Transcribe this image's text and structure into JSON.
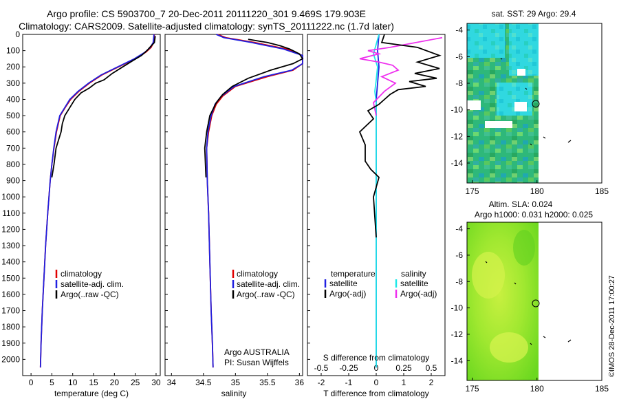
{
  "title": {
    "line1": "Argo profile: CS 5903700_7 20-Dec-2011 20111220_301 9.469S 179.903E",
    "line2": "Climatology: CARS2009. Satellite-adjusted climatology: synTS_20111222.nc (1.7d later)"
  },
  "colors": {
    "climatology": "#e00000",
    "satellite": "#2020e0",
    "argo": "#000000",
    "sat_salinity": "#20e8e8",
    "argo_salinity_diff": "#ee30ee"
  },
  "chart_data": [
    {
      "type": "line",
      "id": "temperature",
      "xlabel": "temperature (deg C)",
      "ylabel": "",
      "xlim": [
        -2,
        31
      ],
      "ylim": [
        2100,
        0
      ],
      "xticks": [
        0,
        5,
        10,
        15,
        20,
        25,
        30
      ],
      "yticks": [
        0,
        100,
        200,
        300,
        400,
        500,
        600,
        700,
        800,
        900,
        1000,
        1100,
        1200,
        1300,
        1400,
        1500,
        1600,
        1700,
        1800,
        1900,
        2000
      ],
      "legend": [
        "climatology",
        "satellite-adj. clim.",
        "Argo(..raw -QC)"
      ],
      "series": [
        {
          "name": "climatology",
          "color": "#e00000",
          "x": [
            29.6,
            29.4,
            28.8,
            27.5,
            25,
            21,
            17,
            14,
            11.5,
            9.5,
            8.2,
            7.0,
            6.1,
            5.5,
            5.0,
            4.6,
            4.0,
            3.5,
            3.1,
            2.7,
            2.4,
            2.25
          ],
          "y": [
            0,
            50,
            80,
            110,
            150,
            200,
            250,
            300,
            350,
            400,
            450,
            500,
            600,
            700,
            800,
            900,
            1100,
            1300,
            1500,
            1700,
            1900,
            2050
          ]
        },
        {
          "name": "satellite-adj. clim.",
          "color": "#2020e0",
          "x": [
            29.5,
            29.3,
            28.6,
            27.3,
            24.8,
            20.8,
            16.8,
            13.8,
            11.3,
            9.3,
            8.1,
            6.9,
            6.0,
            5.45,
            5.0,
            4.6,
            4.0,
            3.5,
            3.1,
            2.7,
            2.4,
            2.25
          ],
          "y": [
            0,
            50,
            80,
            110,
            150,
            200,
            250,
            300,
            350,
            400,
            450,
            500,
            600,
            700,
            800,
            900,
            1100,
            1300,
            1500,
            1700,
            1900,
            2050
          ]
        },
        {
          "name": "Argo(..raw -QC)",
          "color": "#000000",
          "x": [
            29.8,
            29.6,
            28.5,
            27.8,
            26.5,
            24.5,
            22.0,
            19.5,
            17.5,
            15.5,
            14.0,
            12.0,
            10.5,
            9.3,
            8.1,
            7.5,
            7.2,
            6.6,
            6.0,
            5.5,
            5.0
          ],
          "y": [
            10,
            50,
            80,
            100,
            130,
            160,
            200,
            240,
            280,
            300,
            330,
            360,
            400,
            450,
            500,
            550,
            600,
            650,
            700,
            800,
            880
          ]
        }
      ]
    },
    {
      "type": "line",
      "id": "salinity",
      "xlabel": "salinity",
      "ylabel": "",
      "xlim": [
        33.9,
        36.05
      ],
      "ylim": [
        2100,
        0
      ],
      "xticks": [
        34,
        34.5,
        35,
        35.5,
        36
      ],
      "legend": [
        "climatology",
        "satellite-adj. clim.",
        "Argo(..raw -QC)"
      ],
      "annotation": [
        "Argo AUSTRALIA",
        "PI: Susan Wijffels"
      ],
      "series": [
        {
          "name": "climatology",
          "color": "#e00000",
          "x": [
            34.72,
            34.85,
            35.3,
            35.8,
            36.05,
            36.05,
            35.9,
            35.5,
            35.0,
            34.8,
            34.7,
            34.63,
            34.58,
            34.55,
            34.56,
            34.58,
            34.6,
            34.62,
            34.64,
            34.65
          ],
          "y": [
            0,
            20,
            50,
            90,
            130,
            180,
            220,
            260,
            320,
            380,
            430,
            500,
            600,
            700,
            900,
            1100,
            1400,
            1700,
            1900,
            2050
          ]
        },
        {
          "name": "satellite-adj. clim.",
          "color": "#2020e0",
          "x": [
            34.7,
            34.82,
            35.25,
            35.75,
            36.05,
            36.05,
            35.88,
            35.45,
            34.98,
            34.78,
            34.68,
            34.62,
            34.57,
            34.55,
            34.56,
            34.58,
            34.6,
            34.62,
            34.64,
            34.65
          ],
          "y": [
            0,
            20,
            50,
            90,
            130,
            180,
            220,
            260,
            320,
            380,
            430,
            500,
            600,
            700,
            900,
            1100,
            1400,
            1700,
            1900,
            2050
          ]
        },
        {
          "name": "Argo(..raw -QC)",
          "color": "#000000",
          "x": [
            35.2,
            35.5,
            35.7,
            35.85,
            36.0,
            36.05,
            35.9,
            35.55,
            35.2,
            34.95,
            34.8,
            34.7,
            34.6,
            34.55,
            34.52,
            34.54
          ],
          "y": [
            30,
            50,
            70,
            90,
            120,
            150,
            180,
            220,
            270,
            320,
            370,
            420,
            500,
            600,
            700,
            880
          ]
        }
      ]
    },
    {
      "type": "line",
      "id": "difference",
      "xlabel": "T difference from climatology",
      "xlabel_top": "S difference from climatology",
      "xlim": [
        -2.5,
        2.5
      ],
      "ylim": [
        2100,
        0
      ],
      "xticks": [
        -2,
        -1,
        0,
        1,
        2
      ],
      "xticks_s": [
        -0.5,
        -0.25,
        0,
        0.25,
        0.5
      ],
      "xticks_s_labels": [
        "-0.5",
        "-0.25",
        "0",
        "0.25",
        "0.5"
      ],
      "legend_groups": [
        "temperature",
        "salinity"
      ],
      "legend": [
        "satellite",
        "Argo(-adj)",
        "satellite",
        "Argo(-adj)"
      ],
      "series": [
        {
          "name": "temperature satellite",
          "color": "#2020e0",
          "x": [
            0.1,
            0.05,
            0.1,
            0.05,
            0.0,
            0.0,
            0.0,
            0.0,
            0.0,
            0.0,
            0.0
          ],
          "y": [
            0,
            100,
            200,
            300,
            400,
            600,
            800,
            1000,
            1300,
            1700,
            2050
          ]
        },
        {
          "name": "salinity satellite",
          "color": "#20e8e8",
          "x": [
            0.1,
            0.0,
            -0.1,
            0.05,
            0.0,
            -0.05,
            0.0,
            0.0,
            0.0,
            0.0,
            0.0,
            0.0
          ],
          "y": [
            0,
            60,
            120,
            200,
            280,
            350,
            420,
            600,
            900,
            1300,
            1700,
            2050
          ]
        },
        {
          "name": "salinity Argo(-adj)",
          "color": "#ee30ee",
          "x": [
            2.4,
            0.5,
            -0.3,
            0.1,
            -0.6,
            0.1,
            0.6,
            0.8,
            0.2,
            0.7,
            0.3,
            -0.1,
            0.0
          ],
          "y": [
            20,
            80,
            100,
            120,
            150,
            170,
            190,
            220,
            260,
            300,
            350,
            420,
            500
          ]
        },
        {
          "name": "temperature Argo(-adj)",
          "color": "#000000",
          "x": [
            0.3,
            0.2,
            1.5,
            2.3,
            1.5,
            2.3,
            1.4,
            2.2,
            1.2,
            1.8,
            0.8,
            0.5,
            0.3,
            0.1,
            -0.3,
            -0.1,
            -0.6,
            -0.4,
            -0.4,
            -0.2,
            0.1,
            -0.1,
            0.0
          ],
          "y": [
            0,
            50,
            80,
            130,
            170,
            210,
            240,
            270,
            290,
            320,
            340,
            370,
            400,
            430,
            470,
            520,
            600,
            680,
            780,
            830,
            880,
            1000,
            1250
          ]
        }
      ]
    },
    {
      "type": "heatmap",
      "id": "sst_map",
      "title": "sat. SST: 29 Argo: 29.4",
      "xlim": [
        174.6,
        185
      ],
      "ylim": [
        -15.5,
        -3.5
      ],
      "xticks": [
        175,
        180,
        185
      ],
      "yticks": [
        -4,
        -6,
        -8,
        -10,
        -12,
        -14
      ],
      "ytick_labels": [
        "-4",
        "-6",
        "-8",
        "-10",
        "-12",
        "-14"
      ],
      "marker": {
        "lon": 179.9,
        "lat": -9.47
      }
    },
    {
      "type": "heatmap",
      "id": "sla_map",
      "title": "Altim. SLA: 0.024",
      "subtitle": "Argo h1000: 0.031 h2000: 0.025",
      "xlim": [
        174.6,
        185
      ],
      "ylim": [
        -15.5,
        -3.5
      ],
      "xticks": [
        175,
        180,
        185
      ],
      "yticks": [
        -4,
        -6,
        -8,
        -10,
        -12,
        -14
      ],
      "ytick_labels": [
        "-4",
        "-6",
        "-8",
        "-10",
        "-12",
        "-14"
      ],
      "marker": {
        "lon": 179.9,
        "lat": -9.47
      }
    }
  ],
  "footer": {
    "credit": "©IMOS 28-Dec-2011 17:00:27"
  }
}
